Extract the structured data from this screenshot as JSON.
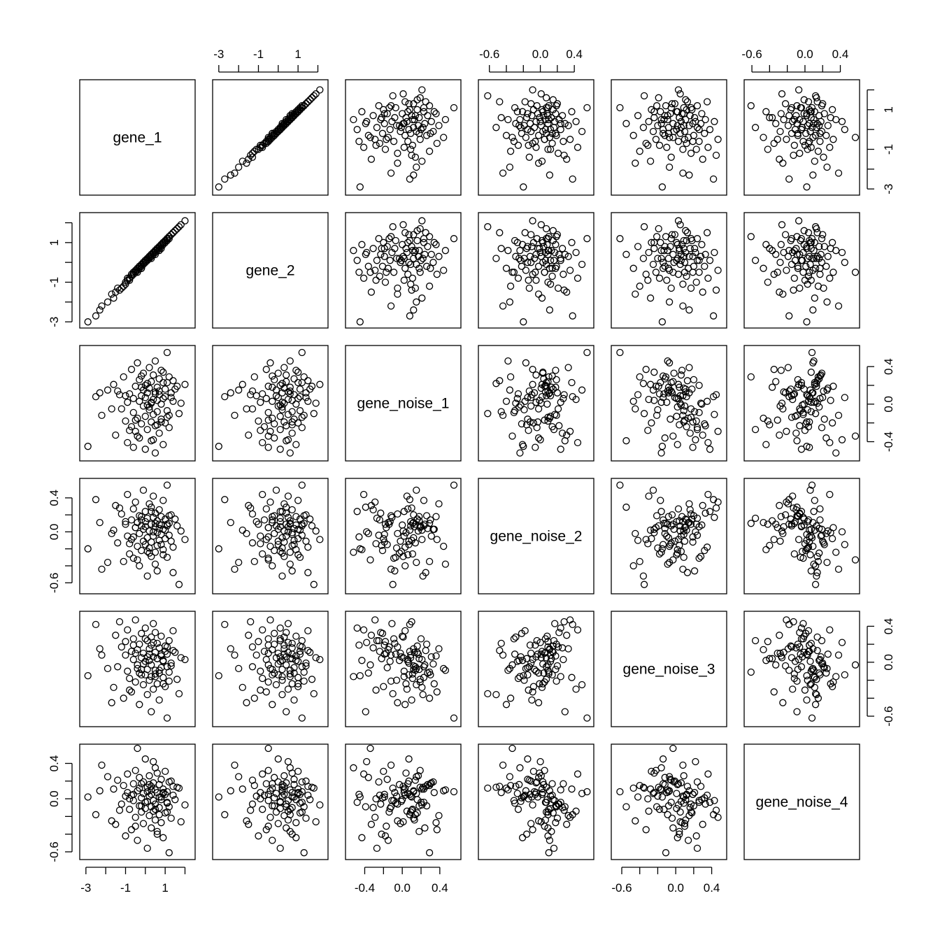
{
  "chart_data": {
    "type": "scatter",
    "subtype": "pairs-matrix",
    "title": "",
    "variables": [
      "gene_1",
      "gene_2",
      "gene_noise_1",
      "gene_noise_2",
      "gene_noise_3",
      "gene_noise_4"
    ],
    "ranges": [
      [
        -3.1,
        2.3
      ],
      [
        -3.1,
        2.3
      ],
      [
        -0.56,
        0.58
      ],
      [
        -0.68,
        0.58
      ],
      [
        -0.67,
        0.52
      ],
      [
        -0.64,
        0.57
      ]
    ],
    "ticks": [
      [
        -3,
        -2,
        -1,
        0,
        1,
        2
      ],
      [
        -3,
        -2,
        -1,
        0,
        1,
        2
      ],
      [
        -0.4,
        -0.2,
        0.0,
        0.2,
        0.4
      ],
      [
        -0.6,
        -0.4,
        -0.2,
        0.0,
        0.2,
        0.4
      ],
      [
        -0.6,
        -0.4,
        -0.2,
        0.0,
        0.2,
        0.4
      ],
      [
        -0.6,
        -0.4,
        -0.2,
        0.0,
        0.2,
        0.4
      ]
    ],
    "tick_labels": [
      [
        "-3",
        "",
        "-1",
        "",
        "1",
        ""
      ],
      [
        "-3",
        "",
        "-1",
        "",
        "1",
        ""
      ],
      [
        "-0.4",
        "",
        "0.0",
        "",
        "0.4"
      ],
      [
        "-0.6",
        "",
        "",
        "0.0",
        "",
        "0.4"
      ],
      [
        "-0.6",
        "",
        "",
        "0.0",
        "",
        "0.4"
      ],
      [
        "-0.6",
        "",
        "",
        "0.0",
        "",
        "0.4"
      ]
    ],
    "axes": {
      "top": [
        1,
        3,
        5
      ],
      "bottom": [
        0,
        2,
        4
      ],
      "left": [
        1,
        3,
        5
      ],
      "right": [
        0,
        2,
        4
      ]
    },
    "n_points": 100,
    "data": {
      "gene_1": [
        -2.9,
        -2.5,
        -2.2,
        -1.6,
        -1.5,
        -1.4,
        -1.2,
        -1.1,
        -1.0,
        -0.9,
        -0.9,
        -0.8,
        -0.7,
        -0.7,
        -0.6,
        -0.6,
        -0.5,
        -0.5,
        -0.4,
        -0.4,
        -0.3,
        -0.3,
        -0.3,
        -0.2,
        -0.2,
        -0.1,
        -0.1,
        -0.1,
        0.0,
        0.0,
        0.0,
        0.1,
        0.1,
        0.1,
        0.2,
        0.2,
        0.2,
        0.3,
        0.3,
        0.3,
        0.3,
        0.4,
        0.4,
        0.4,
        0.5,
        0.5,
        0.5,
        0.5,
        0.6,
        0.6,
        0.6,
        0.7,
        0.7,
        0.7,
        0.8,
        0.8,
        0.8,
        0.9,
        0.9,
        1.0,
        1.0,
        1.0,
        1.1,
        1.1,
        1.2,
        1.2,
        1.3,
        1.4,
        1.6,
        2.0,
        -2.3,
        -1.9,
        -1.3,
        -0.8,
        -0.5,
        -0.2,
        0.1,
        0.4,
        0.7,
        0.9,
        1.2,
        1.4,
        -1.7,
        -1.0,
        -0.4,
        0.0,
        0.3,
        0.6,
        0.9,
        1.1,
        1.3,
        1.5,
        1.7,
        1.8,
        -0.6,
        -0.2,
        0.2,
        0.5,
        0.8,
        1.1
      ],
      "gene_2": [
        -3.0,
        -2.7,
        -2.2,
        -1.8,
        -1.5,
        -1.3,
        -1.3,
        -1.2,
        -1.0,
        -0.9,
        -0.8,
        -0.8,
        -0.7,
        -0.6,
        -0.6,
        -0.5,
        -0.5,
        -0.4,
        -0.4,
        -0.3,
        -0.3,
        -0.2,
        -0.2,
        -0.1,
        -0.2,
        -0.1,
        0.0,
        0.0,
        0.1,
        0.0,
        0.1,
        0.2,
        0.1,
        0.2,
        0.3,
        0.2,
        0.3,
        0.4,
        0.3,
        0.4,
        0.3,
        0.5,
        0.4,
        0.5,
        0.6,
        0.5,
        0.6,
        0.4,
        0.7,
        0.6,
        0.7,
        0.8,
        0.7,
        0.8,
        0.9,
        0.8,
        0.9,
        1.0,
        0.9,
        1.1,
        1.0,
        1.1,
        1.2,
        1.1,
        1.3,
        1.2,
        1.4,
        1.5,
        1.7,
        2.1,
        -2.4,
        -2.0,
        -1.4,
        -0.9,
        -0.5,
        -0.3,
        0.1,
        0.5,
        0.6,
        1.0,
        1.3,
        1.5,
        -1.6,
        -1.1,
        -0.5,
        0.1,
        0.2,
        0.7,
        1.0,
        1.2,
        1.4,
        1.6,
        1.8,
        1.9,
        -0.5,
        -0.3,
        0.2,
        0.6,
        0.7,
        1.2
      ],
      "gene_noise_1": [
        -0.45,
        0.08,
        -0.12,
        0.21,
        -0.33,
        0.14,
        -0.05,
        0.29,
        -0.18,
        0.02,
        -0.41,
        0.11,
        -0.24,
        0.37,
        0.06,
        -0.09,
        0.19,
        -0.29,
        0.44,
        -0.15,
        0.03,
        0.26,
        -0.36,
        0.09,
        -0.21,
        0.15,
        -0.02,
        0.33,
        -0.48,
        0.07,
        -0.13,
        0.22,
        -0.27,
        0.12,
        0.39,
        -0.06,
        0.17,
        -0.39,
        0.01,
        0.24,
        -0.19,
        0.05,
        0.31,
        -0.11,
        -0.52,
        0.13,
        0.46,
        -0.23,
        0.04,
        0.18,
        -0.08,
        0.27,
        -0.31,
        0.1,
        0.36,
        -0.16,
        0.0,
        0.23,
        -0.43,
        0.08,
        -0.2,
        0.16,
        0.55,
        -0.07,
        0.29,
        -0.25,
        0.12,
        0.03,
        0.19,
        0.21,
        0.12,
        0.15,
        0.1,
        -0.28,
        -0.17,
        0.3,
        -0.01,
        -0.38,
        0.14,
        0.06,
        -0.12,
        0.25,
        -0.05,
        0.09,
        -0.34,
        0.2,
        0.02,
        -0.22,
        0.34,
        -0.14,
        0.07,
        0.16,
        -0.1,
        0.01,
        -0.46,
        0.18,
        -0.03,
        0.11,
        -0.19,
        0.23
      ],
      "gene_noise_2": [
        -0.2,
        0.38,
        -0.44,
        0.02,
        0.31,
        -0.13,
        0.21,
        -0.35,
        0.09,
        -0.05,
        0.44,
        -0.26,
        0.14,
        -0.09,
        0.27,
        -0.31,
        0.05,
        0.35,
        -0.17,
        0.11,
        -0.4,
        0.19,
        -0.02,
        0.07,
        -0.22,
        0.49,
        -0.11,
        0.03,
        0.24,
        -0.15,
        0.12,
        -0.52,
        0.16,
        -0.07,
        0.33,
        -0.19,
        0.01,
        0.29,
        -0.29,
        0.09,
        -0.12,
        0.42,
        -0.05,
        0.17,
        -0.24,
        0.06,
        -0.38,
        0.22,
        -0.01,
        0.13,
        -0.46,
        0.04,
        0.26,
        -0.1,
        0.18,
        -0.15,
        0.08,
        0.37,
        -0.21,
        0.02,
        -0.08,
        0.15,
        0.55,
        -0.3,
        0.1,
        -0.04,
        0.2,
        -0.18,
        0.07,
        -0.09,
        0.11,
        -0.36,
        0.28,
        -0.14,
        0.05,
        0.14,
        -0.23,
        0.0,
        0.09,
        -0.27,
        0.19,
        -0.48,
        -0.02,
        0.12,
        -0.33,
        0.06,
        0.24,
        -0.16,
        0.03,
        0.09,
        -0.11,
        0.15,
        -0.62,
        0.01,
        -0.06,
        0.18,
        -0.25,
        0.1,
        -0.03,
        0.07
      ],
      "gene_noise_3": [
        -0.15,
        0.42,
        0.08,
        -0.28,
        0.3,
        -0.05,
        0.17,
        -0.4,
        0.23,
        -0.1,
        0.36,
        -0.18,
        0.12,
        -0.33,
        0.03,
        0.26,
        -0.22,
        0.47,
        -0.07,
        0.14,
        -0.47,
        0.2,
        -0.12,
        0.05,
        0.32,
        -0.25,
        0.1,
        -0.02,
        0.38,
        -0.14,
        0.01,
        -0.36,
        0.24,
        -0.08,
        0.15,
        -0.2,
        0.09,
        -0.55,
        0.28,
        -0.03,
        0.19,
        -0.3,
        0.06,
        0.43,
        -0.16,
        0.11,
        -0.09,
        0.33,
        -0.24,
        0.04,
        0.21,
        -0.12,
        0.16,
        -0.42,
        0.07,
        -0.06,
        0.29,
        -0.17,
        0.02,
        0.12,
        -0.27,
        0.18,
        -0.62,
        0.09,
        -0.11,
        0.24,
        -0.04,
        0.35,
        -0.19,
        0.03,
        0.15,
        -0.07,
        0.45,
        -0.31,
        0.1,
        -0.14,
        0.06,
        0.22,
        -0.09,
        0.01,
        -0.21,
        0.13,
        -0.45,
        0.08,
        -0.03,
        0.26,
        -0.16,
        0.04,
        -0.24,
        0.17,
        -0.01,
        0.11,
        -0.35,
        0.05,
        0.19,
        -0.08,
        0.02,
        -0.13,
        0.09,
        -0.05
      ],
      "gene_noise_4": [
        0.02,
        -0.18,
        0.38,
        0.11,
        -0.29,
        0.21,
        -0.06,
        0.15,
        -0.42,
        0.07,
        0.28,
        -0.12,
        0.04,
        -0.35,
        0.17,
        -0.02,
        0.32,
        -0.21,
        0.09,
        -0.47,
        0.12,
        -0.08,
        0.24,
        -0.15,
        0.01,
        0.06,
        -0.28,
        0.19,
        -0.04,
        0.45,
        -0.11,
        0.13,
        -0.56,
        0.08,
        -0.19,
        0.03,
        0.26,
        -0.09,
        0.14,
        -0.33,
        0.05,
        -0.14,
        0.18,
        -0.02,
        0.35,
        -0.24,
        0.1,
        -0.06,
        0.29,
        -0.37,
        0.07,
        0.16,
        -0.1,
        0.02,
        -0.27,
        0.22,
        -0.01,
        0.11,
        -0.44,
        0.05,
        0.31,
        -0.16,
        0.08,
        -0.05,
        -0.61,
        0.19,
        -0.22,
        0.04,
        0.13,
        -0.07,
        0.09,
        0.25,
        -0.13,
        0.0,
        -0.31,
        0.17,
        -0.03,
        0.42,
        -0.18,
        0.06,
        -0.09,
        0.14,
        -0.25,
        0.03,
        0.57,
        -0.04,
        0.1,
        -0.4,
        0.07,
        -0.15,
        0.2,
        -0.01,
        0.12,
        -0.26,
        0.05,
        -0.08,
        0.16,
        -0.12,
        0.02,
        -0.04
      ]
    }
  }
}
